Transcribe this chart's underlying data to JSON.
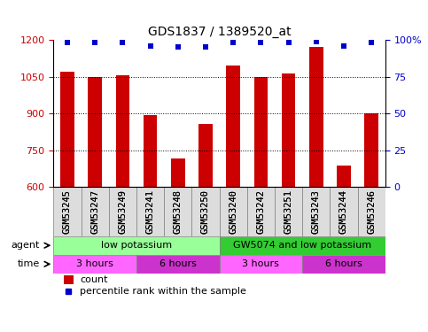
{
  "title": "GDS1837 / 1389520_at",
  "samples": [
    "GSM53245",
    "GSM53247",
    "GSM53249",
    "GSM53241",
    "GSM53248",
    "GSM53250",
    "GSM53240",
    "GSM53242",
    "GSM53251",
    "GSM53243",
    "GSM53244",
    "GSM53246"
  ],
  "bar_values": [
    1070,
    1047,
    1057,
    893,
    718,
    857,
    1095,
    1048,
    1063,
    1170,
    688,
    901
  ],
  "percentile_values": [
    98,
    98,
    98,
    96,
    95,
    95,
    98,
    98,
    98,
    99,
    96,
    98
  ],
  "bar_color": "#cc0000",
  "percentile_color": "#0000cc",
  "ylim_left": [
    600,
    1200
  ],
  "ylim_right": [
    0,
    100
  ],
  "yticks_left": [
    600,
    750,
    900,
    1050,
    1200
  ],
  "yticks_right": [
    0,
    25,
    50,
    75,
    100
  ],
  "ytick_labels_right": [
    "0",
    "25",
    "50",
    "75",
    "100%"
  ],
  "agent_groups": [
    {
      "label": "low potassium",
      "start": 0,
      "end": 6,
      "color": "#99ff99"
    },
    {
      "label": "GW5074 and low potassium",
      "start": 6,
      "end": 12,
      "color": "#33cc33"
    }
  ],
  "time_groups": [
    {
      "label": "3 hours",
      "start": 0,
      "end": 3,
      "color": "#ff66ff"
    },
    {
      "label": "6 hours",
      "start": 3,
      "end": 6,
      "color": "#cc33cc"
    },
    {
      "label": "3 hours",
      "start": 6,
      "end": 9,
      "color": "#ff66ff"
    },
    {
      "label": "6 hours",
      "start": 9,
      "end": 12,
      "color": "#cc33cc"
    }
  ],
  "agent_label": "agent",
  "time_label": "time",
  "legend_count_label": "count",
  "legend_pct_label": "percentile rank within the sample",
  "bar_width": 0.5
}
